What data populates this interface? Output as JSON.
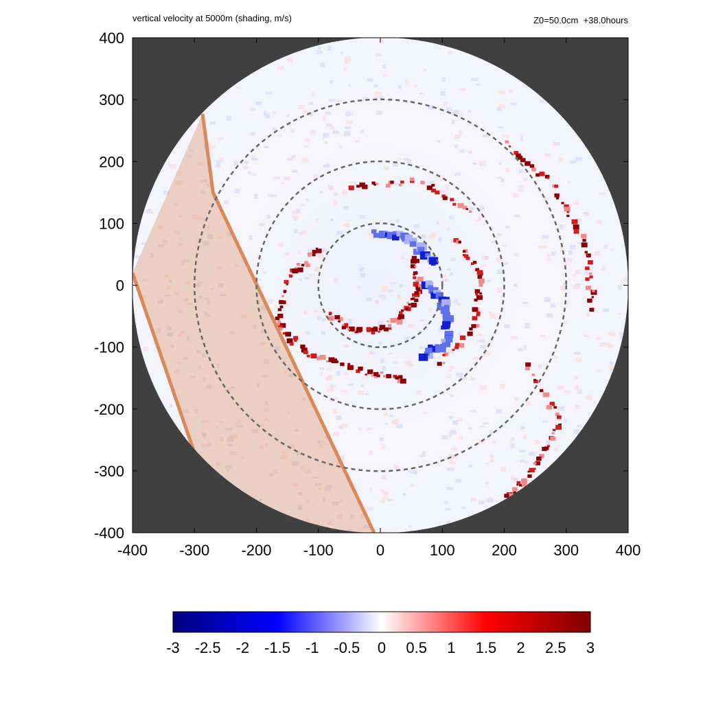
{
  "chart_data": {
    "type": "heatmap",
    "title": "vertical velocity at 5000m (shading, m/s)",
    "subtitle": "Z0=50.0cm  +38.0hours",
    "xlim": [
      -400,
      400
    ],
    "ylim": [
      -400,
      400
    ],
    "x_ticks": [
      "-400",
      "-300",
      "-200",
      "-100",
      "0",
      "100",
      "200",
      "300",
      "400"
    ],
    "y_ticks": [
      "400",
      "300",
      "200",
      "100",
      "0",
      "-100",
      "-200",
      "-300",
      "-400"
    ],
    "domain_radius": 400,
    "reference_circle_radii": [
      100,
      200,
      300
    ],
    "colorbar": {
      "min": -3,
      "max": 3,
      "ticks": [
        "-3",
        "-2.5",
        "-2",
        "-1.5",
        "-1",
        "-0.5",
        "0",
        "0.5",
        "1",
        "1.5",
        "2",
        "2.5",
        "3"
      ],
      "colors": [
        "#00007f",
        "#0000ff",
        "#ffffff",
        "#ff0000",
        "#7f0000"
      ]
    },
    "background_color": "#404040",
    "highlight_band": {
      "color": "#d9895a",
      "left_edge": [
        [
          -400,
          20
        ],
        [
          -290,
          -300
        ],
        [
          -180,
          -400
        ]
      ],
      "right_edge": [
        [
          -287,
          277
        ],
        [
          -270,
          150
        ],
        [
          -10,
          -400
        ]
      ]
    },
    "spiral_bands": [
      {
        "kind": "updraft",
        "points": [
          [
            50,
            45
          ],
          [
            58,
            0
          ],
          [
            40,
            -40
          ],
          [
            0,
            -70
          ],
          [
            -50,
            -70
          ],
          [
            -90,
            -40
          ]
        ]
      },
      {
        "kind": "updraft",
        "points": [
          [
            -100,
            60
          ],
          [
            -150,
            20
          ],
          [
            -170,
            -60
          ],
          [
            -120,
            -110
          ],
          [
            -20,
            -140
          ],
          [
            40,
            -150
          ]
        ]
      },
      {
        "kind": "updraft",
        "points": [
          [
            120,
            80
          ],
          [
            160,
            20
          ],
          [
            150,
            -60
          ],
          [
            90,
            -130
          ]
        ]
      },
      {
        "kind": "updraft",
        "points": [
          [
            -50,
            160
          ],
          [
            60,
            170
          ],
          [
            150,
            120
          ]
        ]
      },
      {
        "kind": "updraft",
        "points": [
          [
            200,
            230
          ],
          [
            280,
            160
          ],
          [
            330,
            60
          ],
          [
            340,
            -40
          ]
        ]
      },
      {
        "kind": "updraft",
        "points": [
          [
            230,
            -120
          ],
          [
            290,
            -220
          ],
          [
            240,
            -300
          ],
          [
            200,
            -340
          ]
        ]
      },
      {
        "kind": "downdraft",
        "points": [
          [
            70,
            10
          ],
          [
            100,
            -30
          ],
          [
            100,
            -90
          ],
          [
            60,
            -110
          ]
        ]
      },
      {
        "kind": "downdraft",
        "points": [
          [
            -10,
            90
          ],
          [
            40,
            80
          ],
          [
            80,
            40
          ]
        ]
      }
    ]
  }
}
